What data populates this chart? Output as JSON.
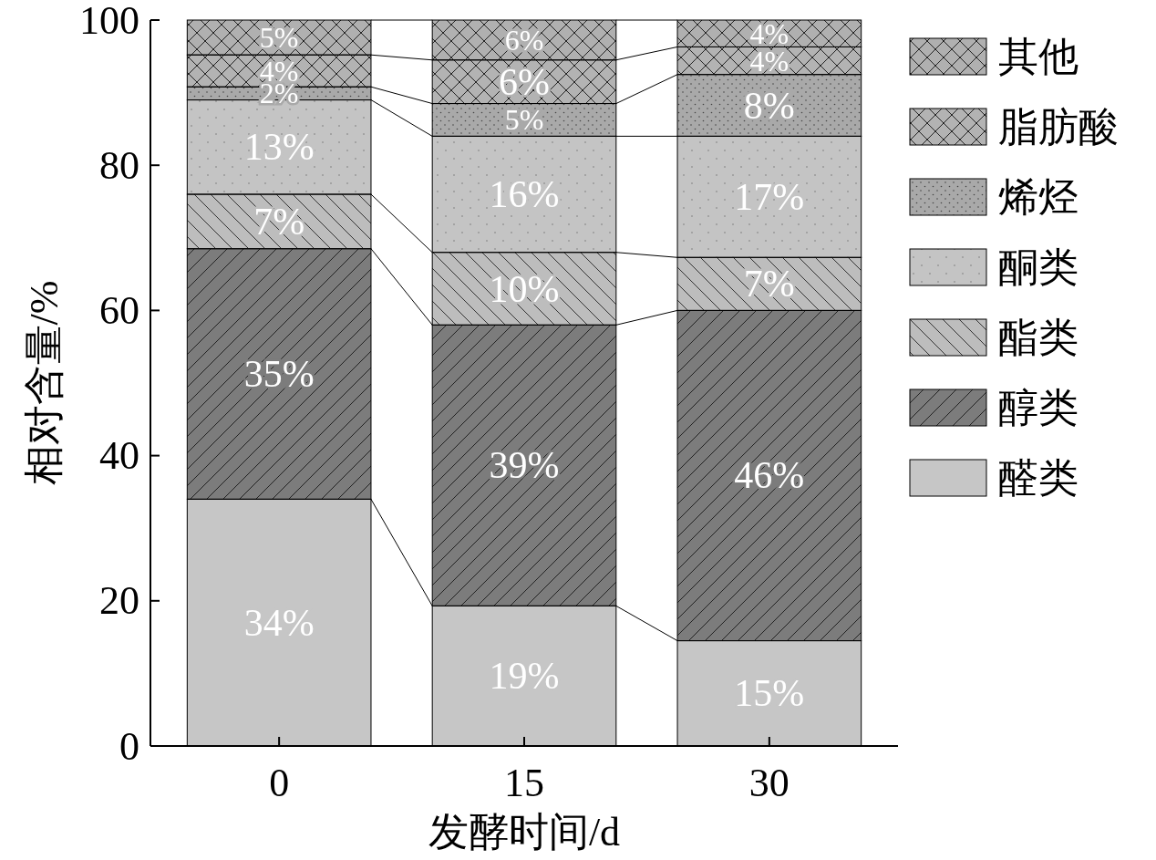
{
  "chart_data": {
    "type": "bar",
    "stacked": true,
    "xlabel": "发酵时间/d",
    "ylabel": "相对含量/%",
    "categories": [
      "0",
      "15",
      "30"
    ],
    "ylim": [
      0,
      100
    ],
    "yticks": [
      0,
      20,
      40,
      60,
      80,
      100
    ],
    "legend": "right",
    "series": [
      {
        "name": "醛类",
        "color": "#c6c6c6",
        "values": [
          34,
          19.3,
          14.5
        ],
        "value_labels": [
          "34%",
          "19%",
          "15%"
        ]
      },
      {
        "name": "醇类",
        "color": "#7c7c7c",
        "values": [
          34.5,
          38.7,
          45.5
        ],
        "value_labels": [
          "35%",
          "39%",
          "46%"
        ]
      },
      {
        "name": "酯类",
        "color": "#bdbdbd",
        "values": [
          7.5,
          10,
          7.3
        ],
        "value_labels": [
          "7%",
          "10%",
          "7%"
        ]
      },
      {
        "name": "酮类",
        "color": "#c4c4c4",
        "values": [
          13,
          16,
          16.7
        ],
        "value_labels": [
          "13%",
          "16%",
          "17%"
        ]
      },
      {
        "name": "烯烃",
        "color": "#a9a9a9",
        "values": [
          1.8,
          4.5,
          8.5
        ],
        "value_labels": [
          "2%",
          "5%",
          "8%"
        ]
      },
      {
        "name": "脂肪酸",
        "color": "#b3b3b3",
        "values": [
          4.4,
          6,
          3.8
        ],
        "value_labels": [
          "4%",
          "6%",
          "4%"
        ]
      },
      {
        "name": "其他",
        "color": "#b0b0b0",
        "values": [
          4.8,
          5.5,
          3.7
        ],
        "value_labels": [
          "5%",
          "6%",
          "4%"
        ]
      }
    ]
  }
}
